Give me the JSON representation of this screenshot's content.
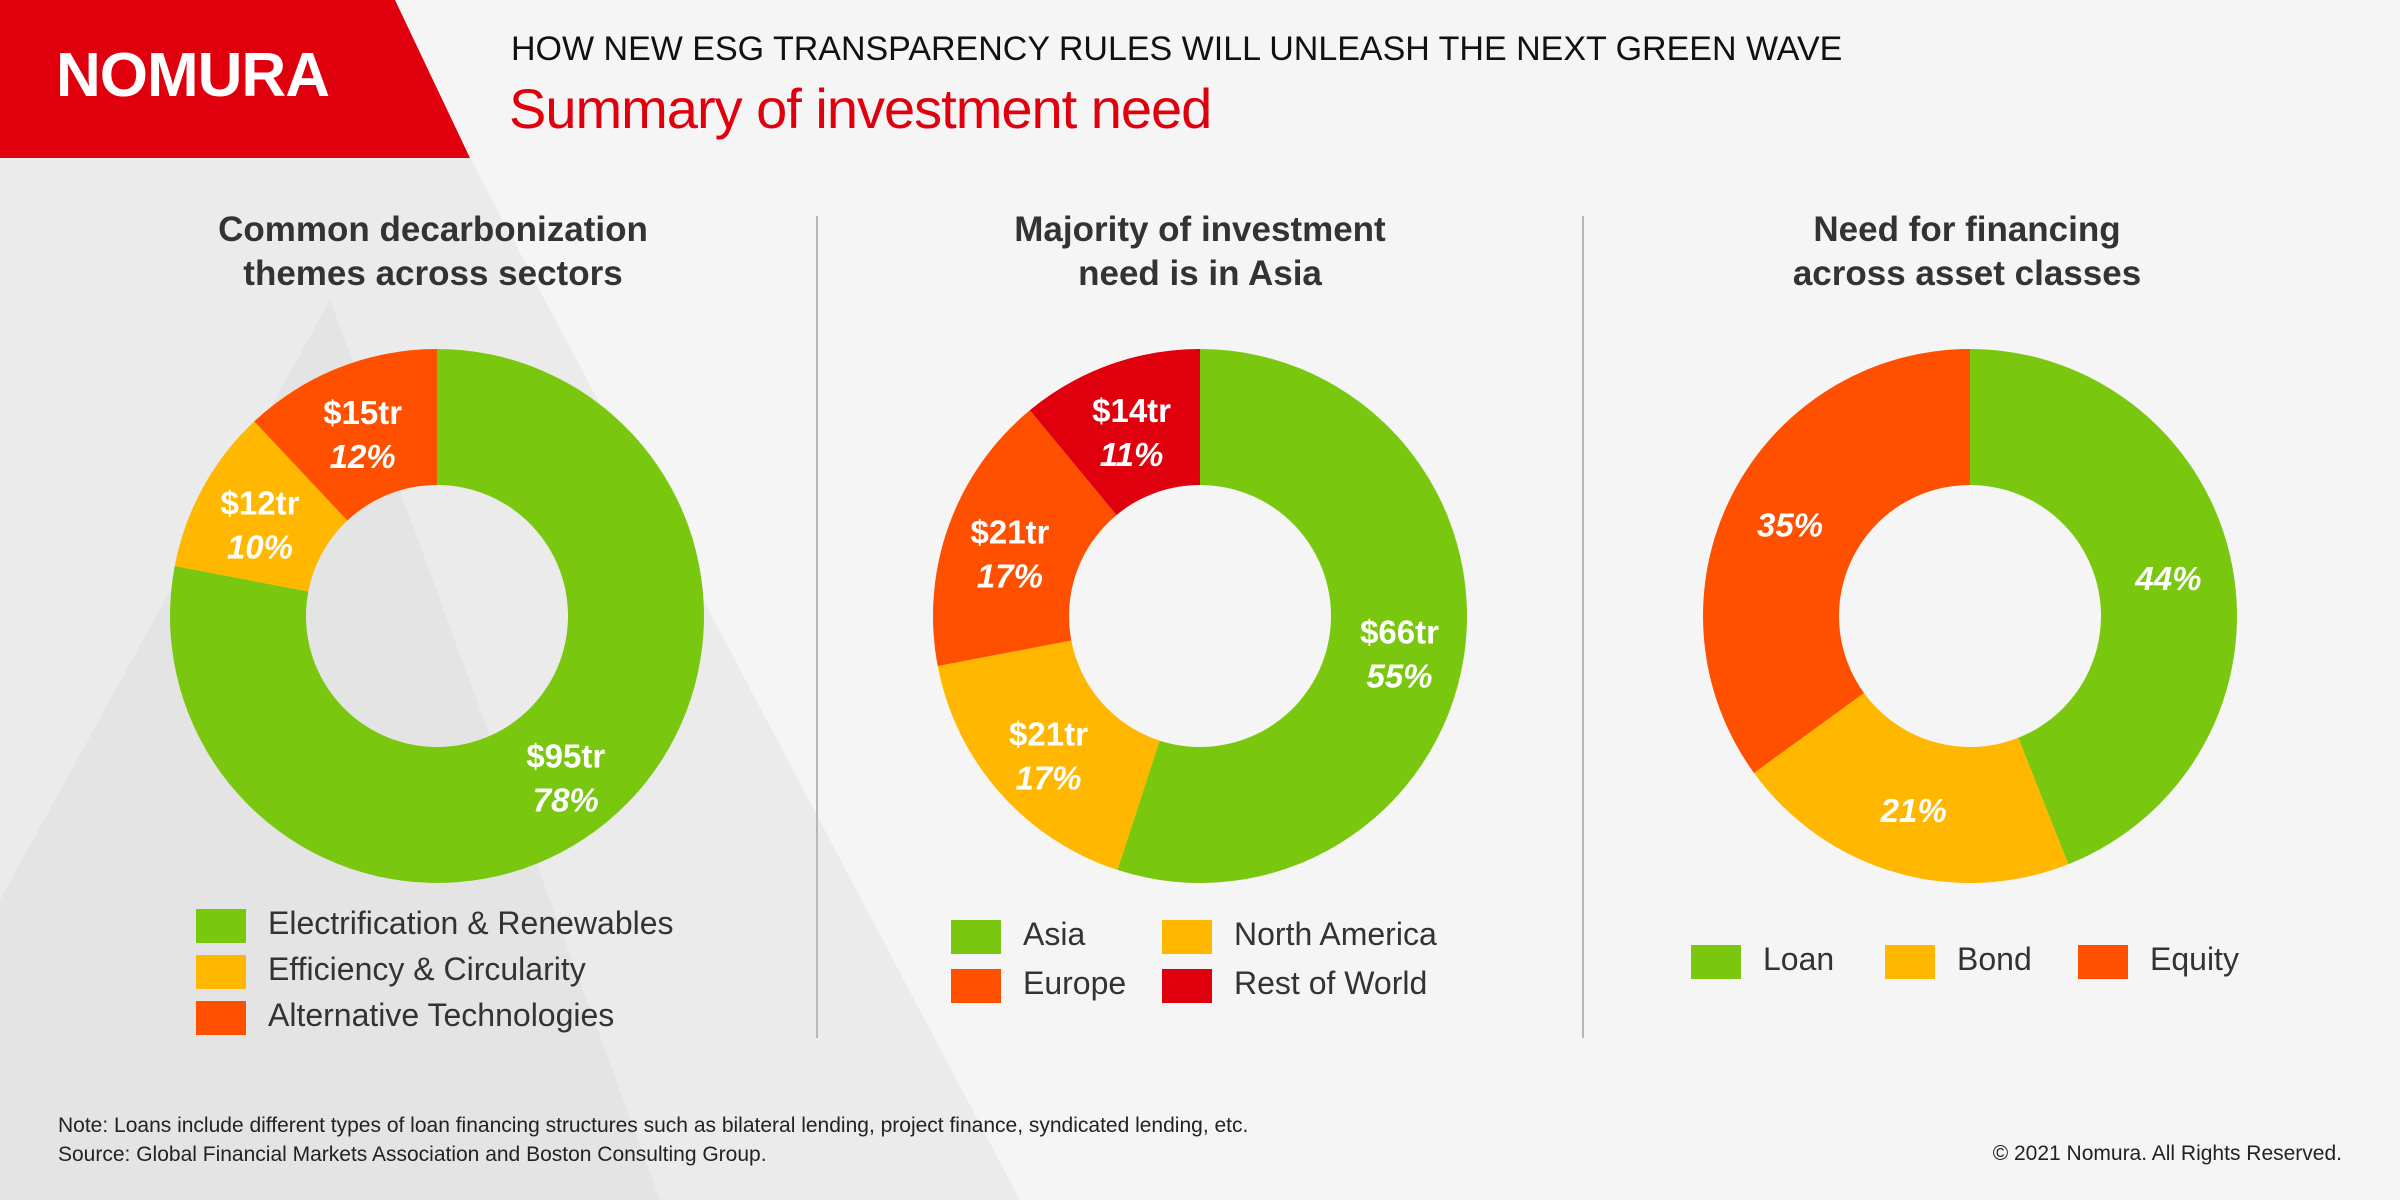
{
  "brand": {
    "logo": "NOMURA",
    "primary_color": "#e0000d"
  },
  "header": {
    "headline": "HOW NEW ESG TRANSPARENCY RULES WILL UNLEASH THE NEXT GREEN WAVE",
    "subtitle": "Summary of investment need"
  },
  "colors": {
    "green": "#7ac70f",
    "yellow": "#ffb700",
    "orange": "#ff5000",
    "red": "#e0000d"
  },
  "chart_data": [
    {
      "type": "pie",
      "title_line1": "Common decarbonization",
      "title_line2": "themes across sectors",
      "slices": [
        {
          "name": "Electrification & Renewables",
          "value_label": "$95tr",
          "percent_label": "78%",
          "value": 78,
          "color": "#7ac70f"
        },
        {
          "name": "Efficiency & Circularity",
          "value_label": "$12tr",
          "percent_label": "10%",
          "value": 10,
          "color": "#ffb700"
        },
        {
          "name": "Alternative Technologies",
          "value_label": "$15tr",
          "percent_label": "12%",
          "value": 12,
          "color": "#ff5000"
        }
      ]
    },
    {
      "type": "pie",
      "title_line1": "Majority of investment",
      "title_line2": "need is in Asia",
      "slices": [
        {
          "name": "Asia",
          "value_label": "$66tr",
          "percent_label": "55%",
          "value": 55,
          "color": "#7ac70f"
        },
        {
          "name": "North America",
          "value_label": "$21tr",
          "percent_label": "17%",
          "value": 17,
          "color": "#ffb700"
        },
        {
          "name": "Europe",
          "value_label": "$21tr",
          "percent_label": "17%",
          "value": 17,
          "color": "#ff5000"
        },
        {
          "name": "Rest of World",
          "value_label": "$14tr",
          "percent_label": "11%",
          "value": 11,
          "color": "#e0000d"
        }
      ]
    },
    {
      "type": "pie",
      "title_line1": "Need for financing",
      "title_line2": "across asset classes",
      "slices": [
        {
          "name": "Loan",
          "value_label": "",
          "percent_label": "44%",
          "value": 44,
          "color": "#7ac70f"
        },
        {
          "name": "Bond",
          "value_label": "",
          "percent_label": "21%",
          "value": 21,
          "color": "#ffb700"
        },
        {
          "name": "Equity",
          "value_label": "",
          "percent_label": "35%",
          "value": 35,
          "color": "#ff5000"
        }
      ]
    }
  ],
  "legends": [
    [
      "Electrification & Renewables",
      "Efficiency & Circularity",
      "Alternative Technologies"
    ],
    [
      "Asia",
      "North America",
      "Europe",
      "Rest of World"
    ],
    [
      "Loan",
      "Bond",
      "Equity"
    ]
  ],
  "footer": {
    "note": "Note: Loans include different types of loan financing structures such as bilateral lending, project finance, syndicated lending, etc.",
    "source": "Source: Global Financial Markets Association and Boston Consulting Group.",
    "copyright": "© 2021 Nomura. All Rights Reserved."
  }
}
